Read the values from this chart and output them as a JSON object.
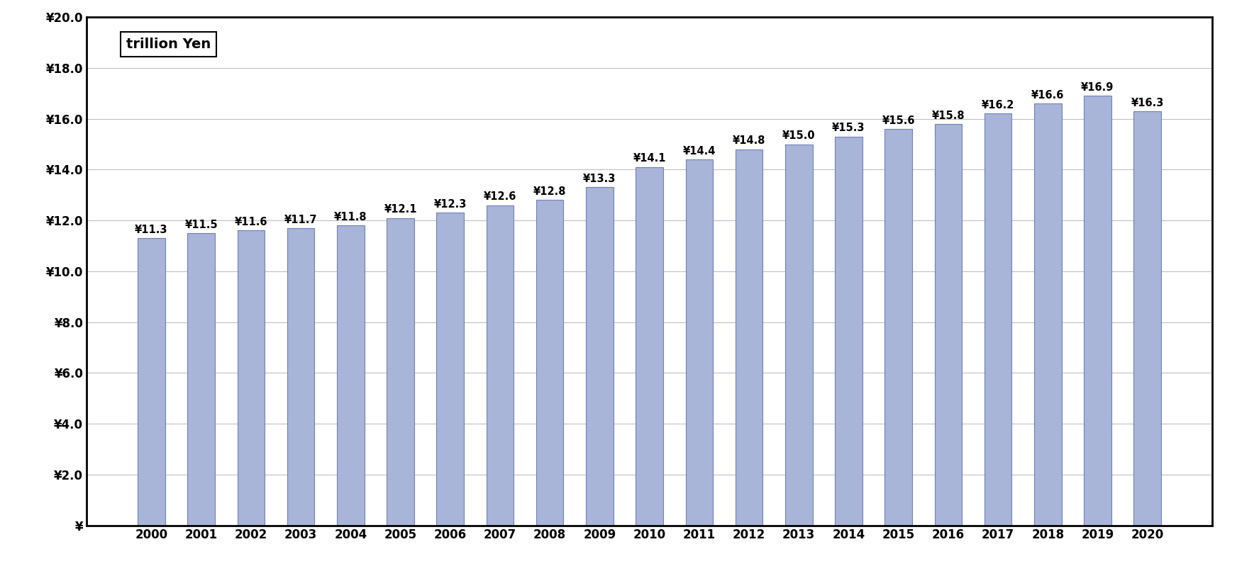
{
  "years": [
    2000,
    2001,
    2002,
    2003,
    2004,
    2005,
    2006,
    2007,
    2008,
    2009,
    2010,
    2011,
    2012,
    2013,
    2014,
    2015,
    2016,
    2017,
    2018,
    2019,
    2020
  ],
  "values": [
    11.3,
    11.5,
    11.6,
    11.7,
    11.8,
    12.1,
    12.3,
    12.6,
    12.8,
    13.3,
    14.1,
    14.4,
    14.8,
    15.0,
    15.3,
    15.6,
    15.8,
    16.2,
    16.6,
    16.9,
    16.3
  ],
  "bar_color": "#A8B4D8",
  "bar_edgecolor": "#7080B8",
  "ylim": [
    0,
    20
  ],
  "ytick_step": 2.0,
  "background_color": "#ffffff",
  "grid_color": "#C0C0C0",
  "annotation_fontsize": 10.5,
  "axis_label_fontsize": 12,
  "legend_text": "trillion Yen",
  "legend_fontsize": 14,
  "bar_width": 0.55
}
